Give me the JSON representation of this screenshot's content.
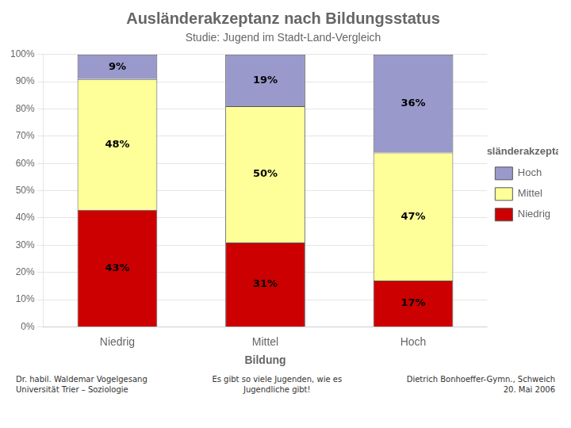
{
  "chart_data": {
    "type": "bar",
    "stacked": true,
    "title": "Ausländerakzeptanz nach Bildungsstatus",
    "subtitle": "Studie: Jugend im Stadt-Land-Vergleich",
    "xlabel": "Bildung",
    "legend_title": "Ausländerakzeptanz",
    "legend": "right",
    "categories": [
      "Niedrig",
      "Mittel",
      "Hoch"
    ],
    "series": [
      {
        "name": "Niedrig",
        "color": "#CC0000",
        "values": [
          43,
          31,
          17
        ],
        "value_labels": [
          "43%",
          "31%",
          "17%"
        ]
      },
      {
        "name": "Mittel",
        "color": "#FFFF99",
        "values": [
          48,
          50,
          47
        ],
        "value_labels": [
          "48%",
          "50%",
          "47%"
        ]
      },
      {
        "name": "Hoch",
        "color": "#9999CC",
        "values": [
          9,
          19,
          36
        ],
        "value_labels": [
          "9%",
          "19%",
          "36%"
        ]
      }
    ],
    "data_labels": true,
    "ylim": [
      0,
      100
    ],
    "yticks": [
      {
        "value": 0,
        "label": "0%"
      },
      {
        "value": 10,
        "label": "10%"
      },
      {
        "value": 20,
        "label": "20%"
      },
      {
        "value": 30,
        "label": "30%"
      },
      {
        "value": 40,
        "label": "40%"
      },
      {
        "value": 50,
        "label": "50%"
      },
      {
        "value": 60,
        "label": "60%"
      },
      {
        "value": 70,
        "label": "70%"
      },
      {
        "value": 80,
        "label": "80%"
      },
      {
        "value": 90,
        "label": "90%"
      },
      {
        "value": 100,
        "label": "100%"
      }
    ],
    "grid": true,
    "annotations": [
      "Dr. habil. Waldemar Vogelgesang\nUniversität Trier – Soziologie",
      "Es gibt so viele Jugenden, wie es\nJugendliche gibt!",
      "Dietrich Bonhoeffer-Gymn., Schweich\n20. Mai 2006"
    ]
  }
}
